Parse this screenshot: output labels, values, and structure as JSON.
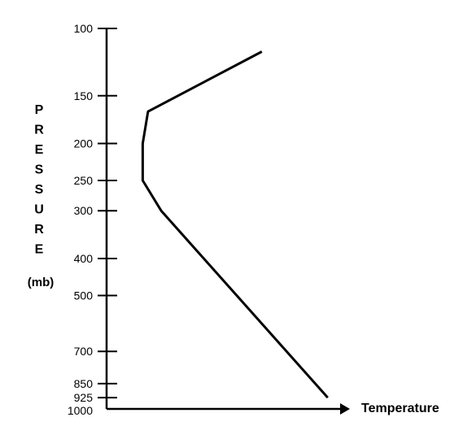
{
  "chart_data": {
    "type": "line",
    "title": "",
    "xlabel": "Temperature",
    "ylabel": "PRESSURE",
    "ylabel_unit": "(mb)",
    "y_scale": "log",
    "y_reversed": true,
    "ylim": [
      1000,
      100
    ],
    "y_ticks": [
      100,
      150,
      200,
      250,
      300,
      400,
      500,
      700,
      850,
      925,
      1000
    ],
    "x_ticks": [],
    "grid": false,
    "legend": "none",
    "series": [
      {
        "values": [
          {
            "y": 925,
            "x": 0.839
          },
          {
            "y": 300,
            "x": 0.207
          },
          {
            "y": 250,
            "x": 0.137
          },
          {
            "y": 200,
            "x": 0.137
          },
          {
            "y": 165,
            "x": 0.157
          },
          {
            "y": 115,
            "x": 0.589
          }
        ]
      }
    ],
    "colors": {
      "line": "#000000",
      "axis": "#000000",
      "text": "#000000"
    }
  }
}
